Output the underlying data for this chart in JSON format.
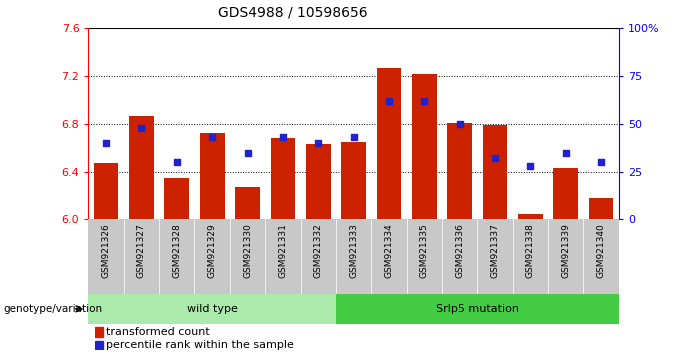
{
  "title": "GDS4988 / 10598656",
  "categories": [
    "GSM921326",
    "GSM921327",
    "GSM921328",
    "GSM921329",
    "GSM921330",
    "GSM921331",
    "GSM921332",
    "GSM921333",
    "GSM921334",
    "GSM921335",
    "GSM921336",
    "GSM921337",
    "GSM921338",
    "GSM921339",
    "GSM921340"
  ],
  "bar_values": [
    6.47,
    6.87,
    6.35,
    6.72,
    6.27,
    6.68,
    6.63,
    6.65,
    7.27,
    7.22,
    6.81,
    6.79,
    6.05,
    6.43,
    6.18
  ],
  "dot_values_pct": [
    40,
    48,
    30,
    43,
    35,
    43,
    40,
    43,
    62,
    62,
    50,
    32,
    28,
    35,
    30
  ],
  "ymin": 6.0,
  "ymax": 7.6,
  "y_ticks": [
    6.0,
    6.4,
    6.8,
    7.2,
    7.6
  ],
  "y_right_ticks": [
    0,
    25,
    50,
    75,
    100
  ],
  "y_right_labels": [
    "0",
    "25",
    "50",
    "75",
    "100%"
  ],
  "bar_color": "#cc2200",
  "dot_color": "#2222cc",
  "wild_type_color": "#aaeaaa",
  "mutation_color": "#44cc44",
  "wild_type_label": "wild type",
  "mutation_label": "Srlp5 mutation",
  "legend_bar_label": "transformed count",
  "legend_dot_label": "percentile rank within the sample",
  "genotype_label": "genotype/variation",
  "title_fontsize": 10
}
